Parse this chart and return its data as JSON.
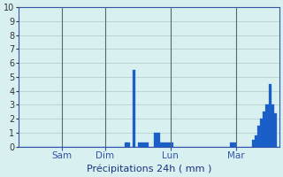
{
  "title": "Précipitations 24h ( mm )",
  "ylim": [
    0,
    10
  ],
  "yticks": [
    0,
    1,
    2,
    3,
    4,
    5,
    6,
    7,
    8,
    9,
    10
  ],
  "background_color": "#d9f0f0",
  "bar_color": "#1a5fc8",
  "grid_color": "#b0c8c8",
  "day_line_color": "#556677",
  "day_labels": [
    "Sam",
    "Dim",
    "Lun",
    "Mar"
  ],
  "day_positions": [
    16,
    32,
    56,
    80
  ],
  "bar_values": [
    0,
    0,
    0,
    0,
    0,
    0,
    0,
    0,
    0,
    0,
    0,
    0,
    0,
    0,
    0,
    0,
    0,
    0,
    0,
    0,
    0,
    0,
    0,
    0,
    0,
    0,
    0,
    0,
    0,
    0,
    0,
    0,
    0,
    0,
    0,
    0,
    0,
    0,
    0,
    0.3,
    0.3,
    0,
    5.5,
    0,
    0.3,
    0.3,
    0.3,
    0.3,
    0,
    0,
    1.0,
    1.0,
    0.3,
    0.3,
    0.3,
    0.3,
    0.3,
    0,
    0,
    0,
    0,
    0,
    0,
    0,
    0,
    0,
    0,
    0,
    0,
    0,
    0,
    0,
    0,
    0,
    0,
    0,
    0,
    0,
    0.3,
    0.3,
    0,
    0,
    0,
    0,
    0,
    0,
    0.5,
    0.8,
    1.5,
    2.0,
    2.5,
    3.0,
    4.5,
    3.0,
    2.4,
    0,
    0,
    0,
    0,
    0,
    0,
    0,
    0,
    0
  ]
}
